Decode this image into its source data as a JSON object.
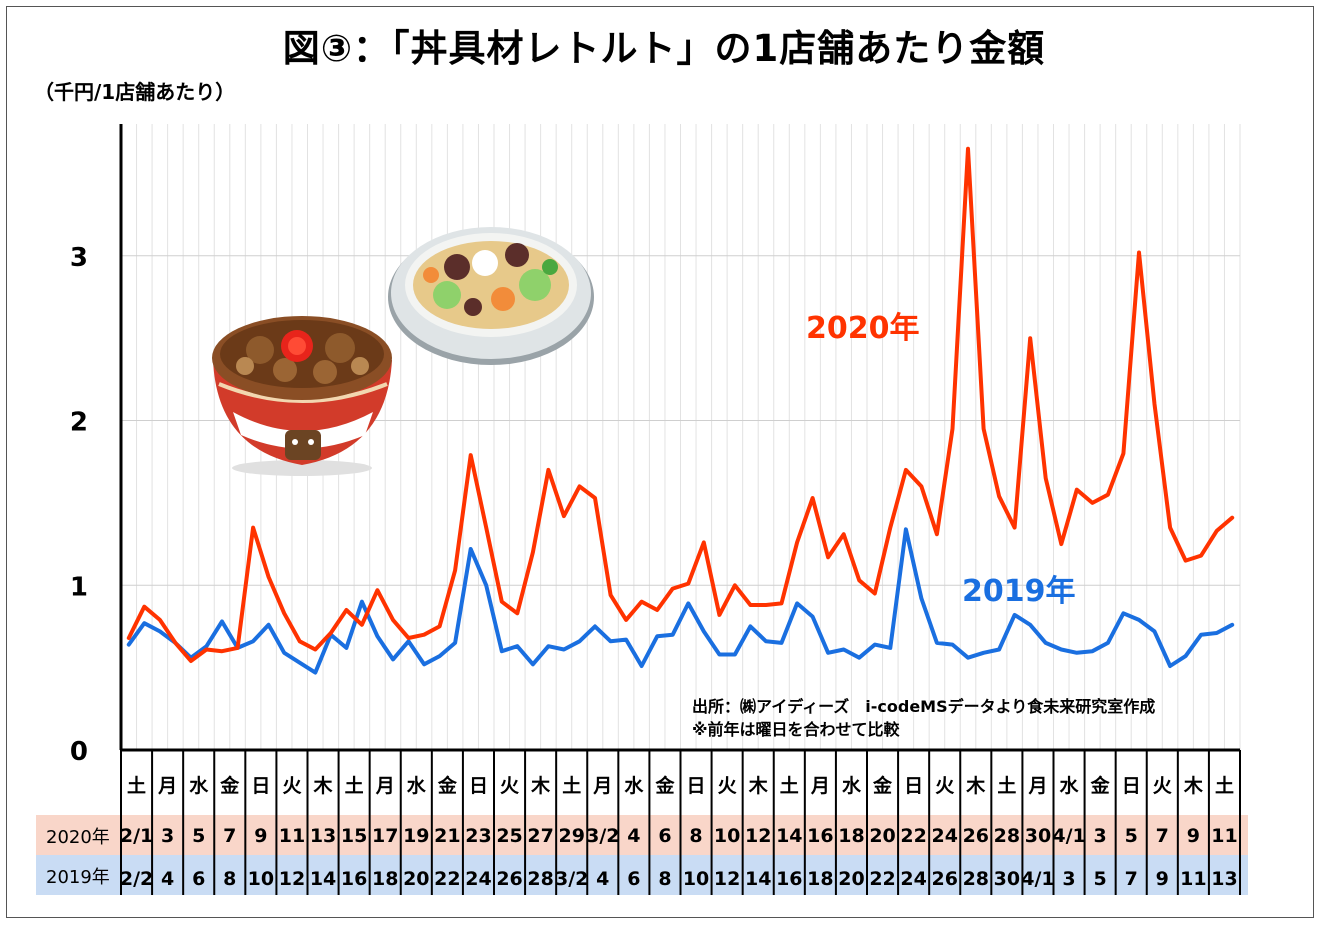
{
  "title": "図③：「丼具材レトルト」の1店舗あたり金額",
  "unit_label": "（千円/1店舗あたり）",
  "source_note": "出所：㈱アイディーズ　i-codeMSデータより食未来研究室作成",
  "comparison_note": "※前年は曜日を合わせて比較",
  "colors": {
    "series_2020": "#ff3300",
    "series_2019": "#1a6fe0",
    "row_2020_bg": "#f9d6c9",
    "row_2019_bg": "#c9dcf4"
  },
  "illustrations": [
    "gyudon-bowl",
    "chukadon-bowl"
  ],
  "chart_data": {
    "type": "line",
    "ylim": [
      0,
      3.8
    ],
    "yticks": [
      0,
      1,
      2,
      3
    ],
    "grid": true,
    "weekdays": [
      "土",
      "月",
      "水",
      "金",
      "日",
      "火",
      "木",
      "土",
      "月",
      "水",
      "金",
      "日",
      "火",
      "木",
      "土",
      "月",
      "水",
      "金",
      "日",
      "火",
      "木",
      "土",
      "月",
      "水",
      "金",
      "日",
      "火",
      "木",
      "土",
      "月",
      "水",
      "金",
      "日",
      "火",
      "木",
      "土"
    ],
    "dates_2020": [
      "2/1",
      "3",
      "5",
      "7",
      "9",
      "11",
      "13",
      "15",
      "17",
      "19",
      "21",
      "23",
      "25",
      "27",
      "29",
      "3/2",
      "4",
      "6",
      "8",
      "10",
      "12",
      "14",
      "16",
      "18",
      "20",
      "22",
      "24",
      "26",
      "28",
      "30",
      "4/1",
      "3",
      "5",
      "7",
      "9",
      "11"
    ],
    "dates_2019": [
      "2/2",
      "4",
      "6",
      "8",
      "10",
      "12",
      "14",
      "16",
      "18",
      "20",
      "22",
      "24",
      "26",
      "28",
      "3/2",
      "4",
      "6",
      "8",
      "10",
      "12",
      "14",
      "16",
      "18",
      "20",
      "22",
      "24",
      "26",
      "28",
      "30",
      "4/1",
      "3",
      "5",
      "7",
      "9",
      "11",
      "13"
    ],
    "series": [
      {
        "name": "2020年",
        "values": [
          0.68,
          0.87,
          0.79,
          0.65,
          0.54,
          0.61,
          0.6,
          0.62,
          1.35,
          1.05,
          0.83,
          0.66,
          0.61,
          0.71,
          0.85,
          0.76,
          0.97,
          0.79,
          0.68,
          0.7,
          0.75,
          1.09,
          1.79,
          1.35,
          0.9,
          0.83,
          1.2,
          1.7,
          1.42,
          1.6,
          1.53,
          0.94,
          0.79,
          0.9,
          0.85,
          0.98,
          1.01,
          1.26,
          0.82,
          1.0,
          0.88,
          0.88,
          0.89,
          1.26,
          1.53,
          1.17,
          1.31,
          1.03,
          0.95,
          1.35,
          1.7,
          1.6,
          1.31,
          1.95,
          3.65,
          1.95,
          1.54,
          1.35,
          2.5,
          1.65,
          1.25,
          1.58,
          1.5,
          1.55,
          1.8,
          3.02,
          2.1,
          1.35,
          1.15,
          1.18,
          1.33,
          1.41
        ]
      },
      {
        "name": "2019年",
        "values": [
          0.64,
          0.77,
          0.72,
          0.65,
          0.56,
          0.63,
          0.78,
          0.62,
          0.66,
          0.76,
          0.59,
          0.53,
          0.47,
          0.7,
          0.62,
          0.9,
          0.69,
          0.55,
          0.66,
          0.52,
          0.57,
          0.65,
          1.22,
          1.0,
          0.6,
          0.63,
          0.52,
          0.63,
          0.61,
          0.66,
          0.75,
          0.66,
          0.67,
          0.51,
          0.69,
          0.7,
          0.89,
          0.72,
          0.58,
          0.58,
          0.75,
          0.66,
          0.65,
          0.89,
          0.81,
          0.59,
          0.61,
          0.56,
          0.64,
          0.62,
          1.34,
          0.92,
          0.65,
          0.64,
          0.56,
          0.59,
          0.61,
          0.82,
          0.76,
          0.65,
          0.61,
          0.59,
          0.6,
          0.65,
          0.83,
          0.79,
          0.72,
          0.51,
          0.57,
          0.7,
          0.71,
          0.76
        ]
      }
    ]
  }
}
